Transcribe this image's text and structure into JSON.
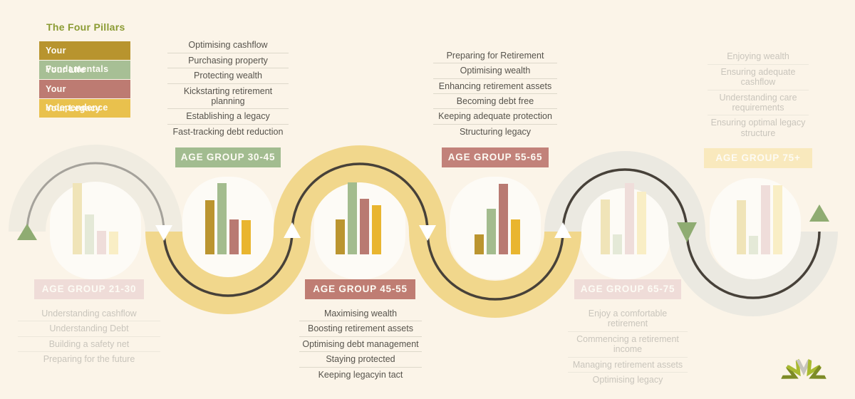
{
  "title": "The Four Pillars",
  "colors": {
    "background": "#fbf4e8",
    "title": "#8b9b33",
    "band_yellow": "#f1d78c",
    "band_beige": "#f0ece1",
    "band_gray": "#ebe9e1",
    "line_dark": "#474139",
    "line_gray": "#a5a29b",
    "arrow_white": "#ffffff",
    "arrow_green": "#8fac72",
    "inner_glow": "rgba(255,255,255,0.6)"
  },
  "legend": [
    {
      "label": "Your Fundamentals",
      "color": "#b8942e"
    },
    {
      "label": "Your LIfe",
      "color": "#a7bf95"
    },
    {
      "label": "Your Independence",
      "color": "#bd7b72"
    },
    {
      "label": "Your Legacy",
      "color": "#e9c14d"
    }
  ],
  "bar_colors": [
    "#bb9530",
    "#a3bc8e",
    "#b97a72",
    "#e9b52f"
  ],
  "bar_colors_faded": [
    "#f0e4b8",
    "#e4e9d7",
    "#efddda",
    "#f9eec5"
  ],
  "groups": [
    {
      "label": "AGE GROUP 21-30",
      "pill_color": "#efdcd8",
      "faded": true,
      "bars": [
        100,
        56,
        33,
        32
      ],
      "items": [
        "Understanding cashflow",
        "Understanding Debt",
        "Building a safety net",
        "Preparing for the future"
      ]
    },
    {
      "label": "AGE GROUP 30-45",
      "pill_color": "#a2bc90",
      "faded": false,
      "bars": [
        76,
        100,
        49,
        48
      ],
      "items": [
        "Optimising cashflow",
        "Purchasing property",
        "Protecting wealth",
        "Kickstarting retirement planning",
        "Establishing a legacy",
        "Fast-tracking debt reduction"
      ]
    },
    {
      "label": "AGE GROUP 45-55",
      "pill_color": "#bf7d73",
      "faded": false,
      "bars": [
        49,
        101,
        78,
        69
      ],
      "items": [
        "Maximising wealth",
        "Boosting retirement assets",
        "Optimising debt management",
        "Staying protected",
        "Keeping legacyin tact"
      ]
    },
    {
      "label": "AGE GROUP 55-65",
      "pill_color": "#c2827a",
      "faded": false,
      "bars": [
        28,
        64,
        99,
        49
      ],
      "items": [
        "Preparing for Retirement",
        "Optimising wealth",
        "Enhancing retirement assets",
        "Becoming debt free",
        "Keeping adequate protection",
        "Structuring legacy"
      ]
    },
    {
      "label": "AGE GROUP 65-75",
      "pill_color": "#efdcd8",
      "faded": true,
      "bars": [
        77,
        28,
        100,
        88
      ],
      "items": [
        "Enjoy a comfortable retirement",
        "Commencing a retirement income",
        "Managing retirement assets",
        "Optimising legacy"
      ]
    },
    {
      "label": "AGE GROUP 75+",
      "pill_color": "#f9e9bd",
      "faded": true,
      "bars": [
        76,
        26,
        97,
        97
      ],
      "items": [
        "Enjoying wealth",
        "Ensuring adequate cashflow",
        "Understanding care requirements",
        "Ensuring optimal legacy structure"
      ]
    }
  ],
  "logo_colors": [
    "#7d8b26",
    "#a9ba30",
    "#c7c5bc",
    "#a9ba30",
    "#7d8b26"
  ]
}
